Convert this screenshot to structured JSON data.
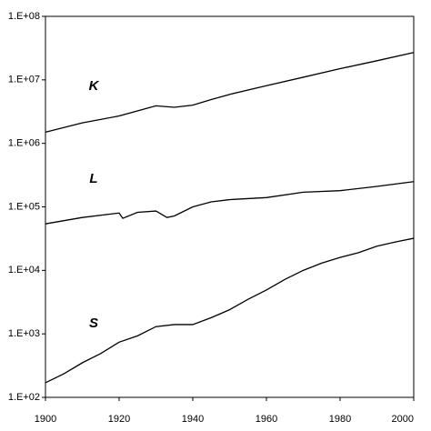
{
  "chart_data": {
    "type": "line",
    "log_y": true,
    "xlim": [
      1900,
      2000
    ],
    "xticks": [
      1900,
      1920,
      1940,
      1960,
      1980,
      2000
    ],
    "ylim": [
      100,
      100000000
    ],
    "yticks": [
      {
        "value": 100,
        "label": "1.E+02"
      },
      {
        "value": 1000,
        "label": "1.E+03"
      },
      {
        "value": 10000,
        "label": "1.E+04"
      },
      {
        "value": 100000,
        "label": "1.E+05"
      },
      {
        "value": 1000000,
        "label": "1.E+06"
      },
      {
        "value": 10000000,
        "label": "1.E+07"
      },
      {
        "value": 100000000,
        "label": "1.E+08"
      }
    ],
    "series": [
      {
        "name": "K",
        "color": "#000000",
        "x": [
          1900,
          1910,
          1920,
          1930,
          1935,
          1940,
          1945,
          1950,
          1960,
          1970,
          1980,
          1990,
          2000
        ],
        "values": [
          1500000,
          2100000,
          2700000,
          3900000,
          3700000,
          4000000,
          4900000,
          5900000,
          8100000,
          11000000,
          15000000,
          20000000,
          27000000
        ]
      },
      {
        "name": "L",
        "color": "#000000",
        "x": [
          1900,
          1910,
          1920,
          1921,
          1925,
          1930,
          1933,
          1935,
          1940,
          1945,
          1950,
          1960,
          1970,
          1980,
          1990,
          2000
        ],
        "values": [
          54000,
          68000,
          80000,
          66000,
          82000,
          86000,
          68000,
          72000,
          100000,
          120000,
          130000,
          140000,
          170000,
          180000,
          210000,
          250000
        ]
      },
      {
        "name": "S",
        "color": "#000000",
        "x": [
          1900,
          1905,
          1910,
          1915,
          1920,
          1925,
          1930,
          1935,
          1940,
          1945,
          1950,
          1955,
          1960,
          1965,
          1970,
          1975,
          1980,
          1985,
          1990,
          1995,
          2000
        ],
        "values": [
          170,
          235,
          350,
          490,
          740,
          930,
          1300,
          1400,
          1400,
          1800,
          2400,
          3500,
          4900,
          7200,
          10000,
          13000,
          16000,
          19000,
          24000,
          28000,
          32000
        ]
      }
    ]
  }
}
